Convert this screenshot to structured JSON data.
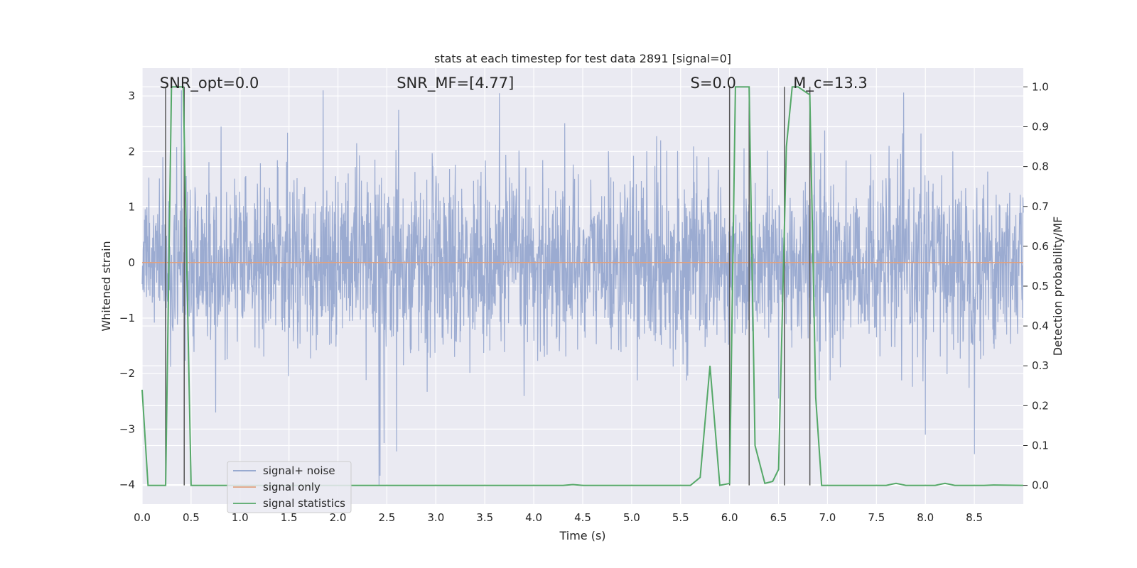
{
  "chart_data": {
    "type": "line",
    "title": "stats at each timestep for test data 2891 [signal=0]",
    "xlabel": "Time (s)",
    "ylabel": "Whitened strain",
    "y2label": "Detection probability/MF",
    "xlim": [
      0.0,
      9.0
    ],
    "ylim": [
      -4.35,
      3.5
    ],
    "y2lim": [
      -0.047,
      1.047
    ],
    "x_ticks": [
      0.0,
      0.5,
      1.0,
      1.5,
      2.0,
      2.5,
      3.0,
      3.5,
      4.0,
      4.5,
      5.0,
      5.5,
      6.0,
      6.5,
      7.0,
      7.5,
      8.0,
      8.5
    ],
    "x_tick_labels": [
      "0.0",
      "0.5",
      "1.0",
      "1.5",
      "2.0",
      "2.5",
      "3.0",
      "3.5",
      "4.0",
      "4.5",
      "5.0",
      "5.5",
      "6.0",
      "6.5",
      "7.0",
      "7.5",
      "8.0",
      "8.5"
    ],
    "y_ticks": [
      -4,
      -3,
      -2,
      -1,
      0,
      1,
      2,
      3
    ],
    "y_tick_labels": [
      "−4",
      "−3",
      "−2",
      "−1",
      "0",
      "1",
      "2",
      "3"
    ],
    "y2_ticks": [
      0.0,
      0.1,
      0.2,
      0.3,
      0.4,
      0.5,
      0.6,
      0.7,
      0.8,
      0.9,
      1.0
    ],
    "y2_tick_labels": [
      "0.0",
      "0.1",
      "0.2",
      "0.3",
      "0.4",
      "0.5",
      "0.6",
      "0.7",
      "0.8",
      "0.9",
      "1.0"
    ],
    "grid": true,
    "legend_position": "lower-left",
    "legend": [
      {
        "label": "signal+ noise",
        "color": "#8da0cb"
      },
      {
        "label": "signal only",
        "color": "#e0a17f"
      },
      {
        "label": "signal statistics",
        "color": "#55a868"
      }
    ],
    "annotations": [
      {
        "x": 0.18,
        "text": "SNR_opt=0.0"
      },
      {
        "x": 2.6,
        "text": "SNR_MF=[4.77]"
      },
      {
        "x": 5.6,
        "text": "S=0.0"
      },
      {
        "x": 6.65,
        "text": "M_c=13.3"
      }
    ],
    "series": [
      {
        "name": "signal+ noise",
        "color": "#8da0cb",
        "axis": "left",
        "noise_std": 0.8,
        "noise_peak_max": 3.1,
        "noise_peak_min": -4.0,
        "notable_peaks": [
          {
            "x": 0.4,
            "y": 3.1
          },
          {
            "x": 1.85,
            "y": 3.1
          },
          {
            "x": 2.62,
            "y": 2.75
          },
          {
            "x": 3.65,
            "y": 3.05
          },
          {
            "x": 2.42,
            "y": -4.0
          },
          {
            "x": 2.47,
            "y": -3.25
          },
          {
            "x": 2.6,
            "y": -3.4
          },
          {
            "x": 8.5,
            "y": -3.45
          },
          {
            "x": 6.5,
            "y": -2.45
          },
          {
            "x": 8.0,
            "y": -3.1
          },
          {
            "x": 0.75,
            "y": -2.7
          }
        ]
      },
      {
        "name": "signal only",
        "color": "#e0a17f",
        "axis": "left",
        "x": [
          0.0,
          9.0
        ],
        "y": [
          0.0,
          0.0
        ]
      },
      {
        "name": "signal statistics",
        "color": "#55a868",
        "axis": "right",
        "x": [
          0.0,
          0.06,
          0.24,
          0.3,
          0.42,
          0.5,
          0.6,
          4.3,
          4.4,
          4.5,
          5.6,
          5.7,
          5.8,
          5.9,
          6.0,
          6.06,
          6.2,
          6.26,
          6.36,
          6.44,
          6.5,
          6.58,
          6.64,
          6.7,
          6.82,
          6.88,
          6.94,
          7.6,
          7.7,
          7.8,
          8.1,
          8.2,
          8.3,
          8.6,
          8.7,
          9.0
        ],
        "y": [
          0.24,
          0.0,
          0.0,
          1.0,
          1.0,
          0.0,
          0.0,
          0.0,
          0.002,
          0.0,
          0.0,
          0.02,
          0.3,
          0.0,
          0.005,
          1.0,
          1.0,
          0.1,
          0.005,
          0.01,
          0.04,
          0.85,
          1.0,
          1.0,
          0.98,
          0.22,
          0.0,
          0.0,
          0.005,
          0.0,
          0.0,
          0.005,
          0.0,
          0.0,
          0.001,
          0.0
        ]
      }
    ],
    "vertical_lines": [
      0.24,
      0.43,
      6.0,
      6.2,
      6.56,
      6.82
    ]
  }
}
